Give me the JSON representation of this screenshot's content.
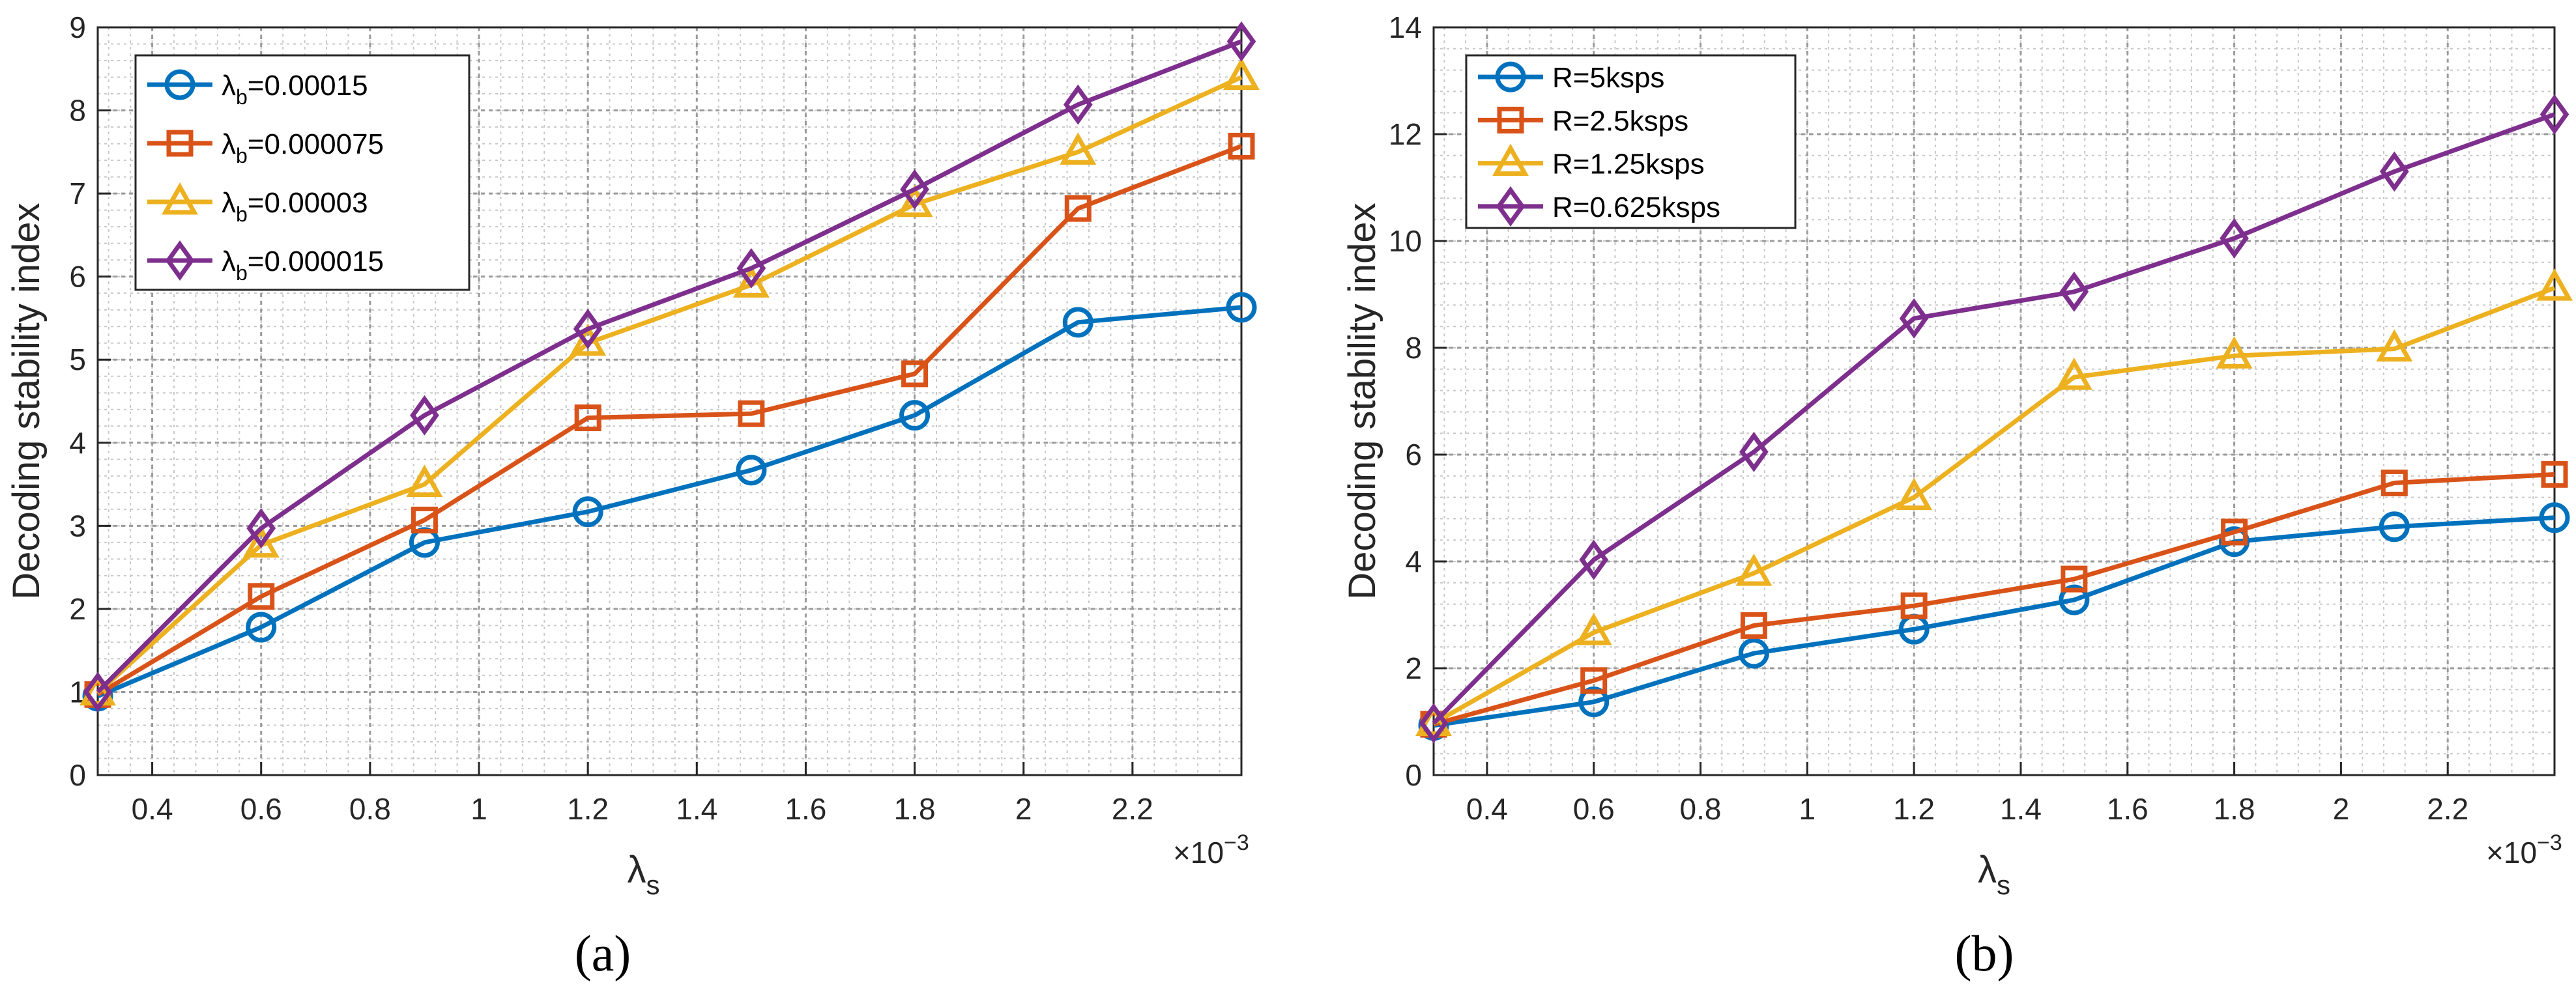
{
  "chart_data": [
    {
      "type": "line",
      "panel_label": "a",
      "xlabel": "λ",
      "xlabel_sub": "s",
      "ylabel": "Decoding stability index",
      "x_exponent": "×10",
      "x_exponent_power": "−3",
      "x": [
        0.3,
        0.6,
        0.9,
        1.2,
        1.5,
        1.8,
        2.1,
        2.4
      ],
      "xlim": [
        0.3,
        2.4
      ],
      "ylim": [
        0,
        9
      ],
      "xticks": [
        "0.4",
        "0.6",
        "0.8",
        "1",
        "1.2",
        "1.4",
        "1.6",
        "1.8",
        "2",
        "2.2"
      ],
      "yticks": [
        "0",
        "1",
        "2",
        "3",
        "4",
        "5",
        "6",
        "7",
        "8",
        "9"
      ],
      "grid": true,
      "legend_position": "top-left",
      "series": [
        {
          "name": "λ",
          "name_sub": "b",
          "name_value": "=0.00015",
          "marker": "circle",
          "color": "#0072BD",
          "values": [
            0.95,
            1.78,
            2.8,
            3.17,
            3.67,
            4.33,
            5.45,
            5.63
          ]
        },
        {
          "name": "λ",
          "name_sub": "b",
          "name_value": "=0.000075",
          "marker": "square",
          "color": "#D95319",
          "values": [
            0.97,
            2.15,
            3.07,
            4.3,
            4.35,
            4.83,
            6.82,
            7.57
          ]
        },
        {
          "name": "λ",
          "name_sub": "b",
          "name_value": "=0.00003",
          "marker": "triangle",
          "color": "#EDB120",
          "values": [
            0.99,
            2.77,
            3.5,
            5.2,
            5.9,
            6.87,
            7.5,
            8.4
          ]
        },
        {
          "name": "λ",
          "name_sub": "b",
          "name_value": "=0.000015",
          "marker": "diamond",
          "color": "#7E2F8E",
          "values": [
            1.0,
            2.97,
            4.33,
            5.37,
            6.1,
            7.05,
            8.07,
            8.83
          ]
        }
      ]
    },
    {
      "type": "line",
      "panel_label": "b",
      "xlabel": "λ",
      "xlabel_sub": "s",
      "ylabel": "Decoding stability index",
      "x_exponent": "×10",
      "x_exponent_power": "−3",
      "x": [
        0.3,
        0.6,
        0.9,
        1.2,
        1.5,
        1.8,
        2.1,
        2.4
      ],
      "xlim": [
        0.3,
        2.4
      ],
      "ylim": [
        0,
        14
      ],
      "xticks": [
        "0.4",
        "0.6",
        "0.8",
        "1",
        "1.2",
        "1.4",
        "1.6",
        "1.8",
        "2",
        "2.2"
      ],
      "yticks": [
        "0",
        "2",
        "4",
        "6",
        "8",
        "10",
        "12",
        "14"
      ],
      "grid": true,
      "legend_position": "top-left",
      "series": [
        {
          "name": "R=5ksps",
          "marker": "circle",
          "color": "#0072BD",
          "values": [
            0.93,
            1.37,
            2.28,
            2.73,
            3.28,
            4.37,
            4.65,
            4.82
          ]
        },
        {
          "name": "R=2.5ksps",
          "marker": "square",
          "color": "#D95319",
          "values": [
            0.95,
            1.77,
            2.8,
            3.17,
            3.67,
            4.55,
            5.47,
            5.63
          ]
        },
        {
          "name": "R=1.25ksps",
          "marker": "triangle",
          "color": "#EDB120",
          "values": [
            0.97,
            2.67,
            3.78,
            5.2,
            7.45,
            7.85,
            7.98,
            9.12
          ]
        },
        {
          "name": "R=0.625ksps",
          "marker": "diamond",
          "color": "#7E2F8E",
          "values": [
            0.97,
            4.03,
            6.05,
            8.55,
            9.05,
            10.05,
            11.3,
            12.37
          ]
        }
      ]
    }
  ],
  "captions": [
    "(a)",
    "(b)"
  ]
}
